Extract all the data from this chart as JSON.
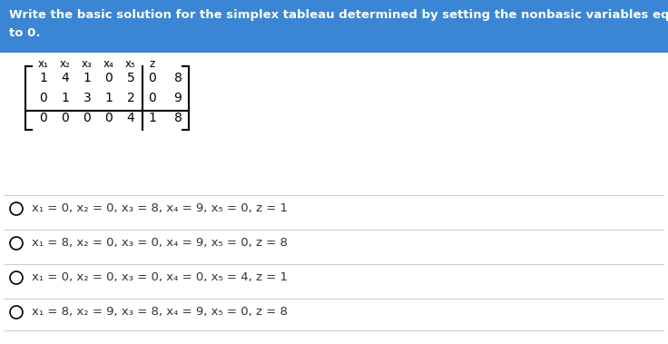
{
  "header_text_line1": "Write the basic solution for the simplex tableau determined by setting the nonbasic variables equal",
  "header_text_line2": "to 0.",
  "header_bg": "#3a86d4",
  "header_text_color": "#ffffff",
  "col_labels": [
    "x₁",
    "x₂",
    "x₃",
    "x₄",
    "x₅",
    "z"
  ],
  "matrix": [
    [
      1,
      4,
      1,
      0,
      5,
      0,
      8
    ],
    [
      0,
      1,
      3,
      1,
      2,
      0,
      9
    ],
    [
      0,
      0,
      0,
      0,
      4,
      1,
      8
    ]
  ],
  "options": [
    "x₁ = 0, x₂ = 0, x₃ = 8, x₄ = 9, x₅ = 0, z = 1",
    "x₁ = 8, x₂ = 0, x₃ = 0, x₄ = 9, x₅ = 0, z = 8",
    "x₁ = 0, x₂ = 0, x₃ = 0, x₄ = 0, x₅ = 4, z = 1",
    "x₁ = 8, x₂ = 9, x₃ = 8, x₄ = 9, x₅ = 0, z = 8"
  ],
  "bg_color": "#ffffff",
  "separator_color": "#cccccc",
  "text_color": "#333333"
}
